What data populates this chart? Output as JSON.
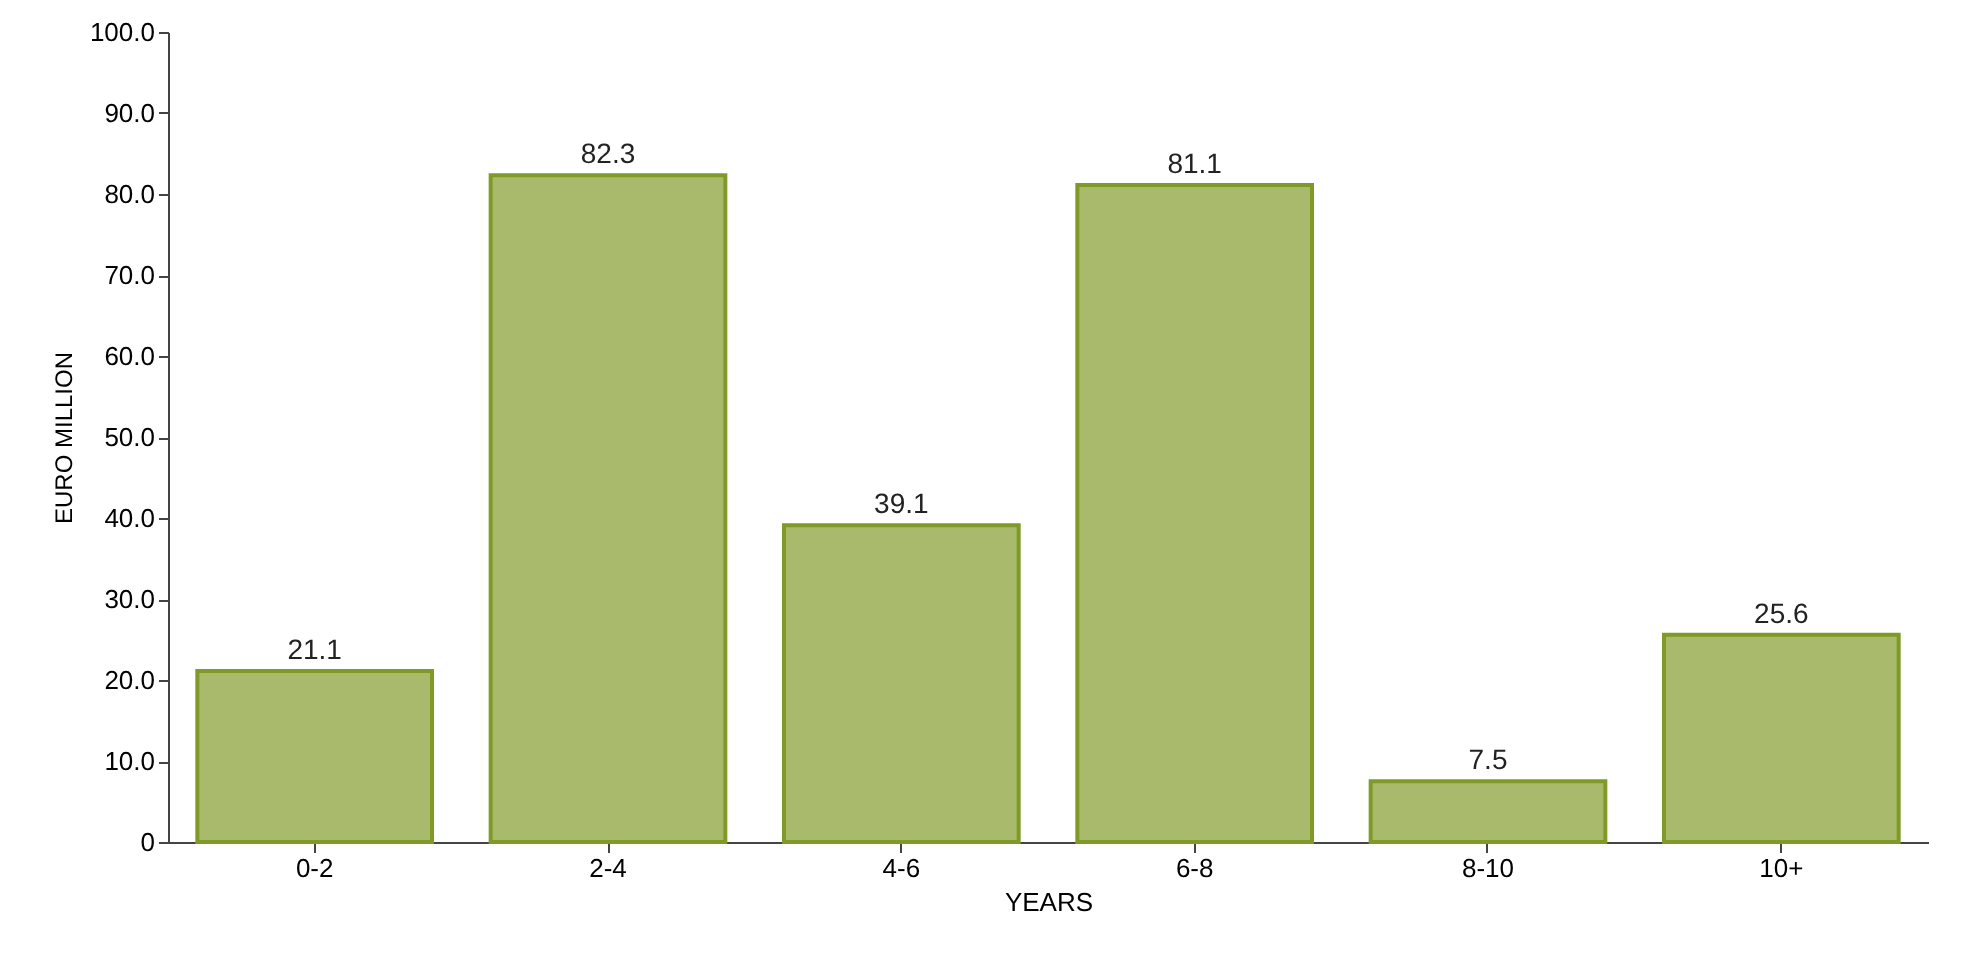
{
  "chart_data": {
    "type": "bar",
    "xlabel": "YEARS",
    "ylabel": "EURO MILLION",
    "categories": [
      "0-2",
      "2-4",
      "4-6",
      "6-8",
      "8-10",
      "10+"
    ],
    "values": [
      21.1,
      82.3,
      39.1,
      81.1,
      7.5,
      25.6
    ],
    "color": "#a9ba6c",
    "ylim": [
      0,
      100
    ],
    "yticks": [
      0,
      {
        "value": 10,
        "label": "10.0"
      },
      {
        "value": 20,
        "label": "20.0"
      },
      {
        "value": 30,
        "label": "30.0"
      },
      {
        "value": 40,
        "label": "40.0"
      },
      {
        "value": 50,
        "label": "50.0"
      },
      {
        "value": 60,
        "label": "60.0"
      },
      {
        "value": 70,
        "label": "70.0"
      },
      {
        "value": 80,
        "label": "80.0"
      },
      {
        "value": 90,
        "label": "90.0"
      },
      {
        "value": 100,
        "label": "100.0"
      }
    ],
    "data_labels": true,
    "grid": false
  }
}
